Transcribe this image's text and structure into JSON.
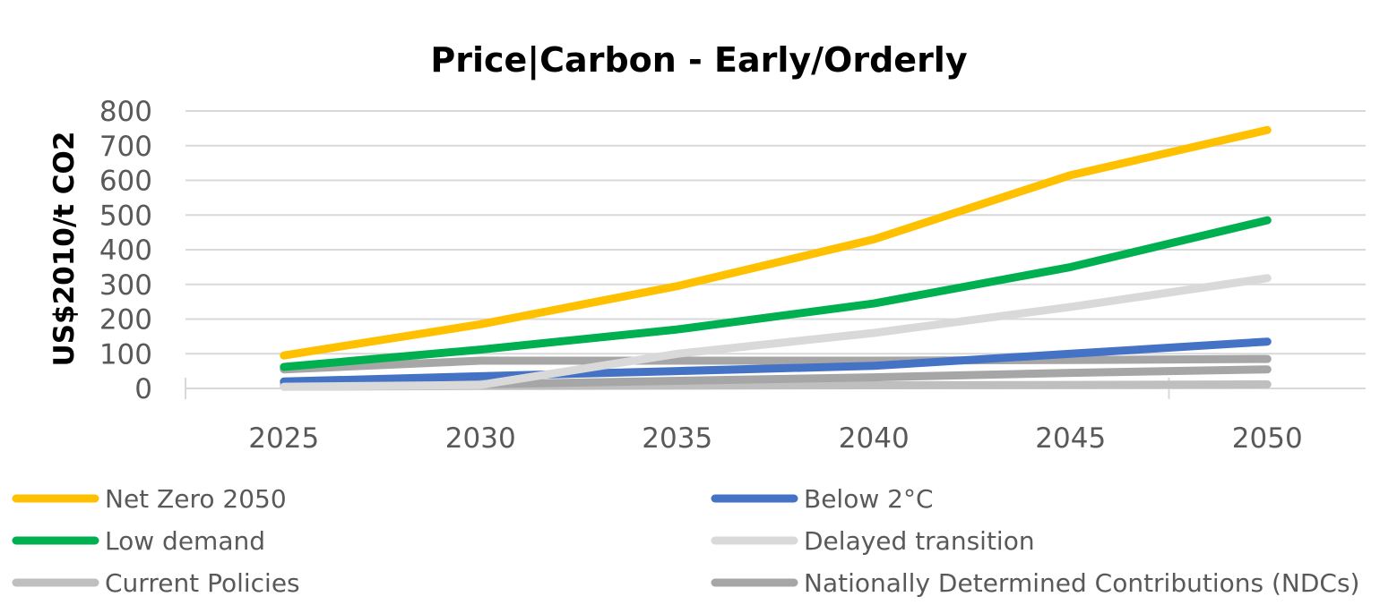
{
  "chart_data": {
    "type": "line",
    "title": "Price|Carbon - Early/Orderly",
    "xlabel": "",
    "ylabel": "US$2010/t CO2",
    "x": [
      "2025",
      "2030",
      "2035",
      "2040",
      "2045",
      "2050"
    ],
    "yticks": [
      "0",
      "100",
      "200",
      "300",
      "400",
      "500",
      "600",
      "700",
      "800"
    ],
    "ylim": [
      0,
      800
    ],
    "grid": true,
    "legend_position": "bottom",
    "series": [
      {
        "name": "Net Zero 2050",
        "color": "#FFC000",
        "values": [
          95,
          185,
          295,
          430,
          615,
          745
        ]
      },
      {
        "name": "Below 2°C",
        "color": "#4472C4",
        "values": [
          20,
          35,
          50,
          65,
          100,
          135
        ]
      },
      {
        "name": "Low demand",
        "color": "#00B050",
        "values": [
          62,
          112,
          170,
          245,
          350,
          485
        ]
      },
      {
        "name": "Delayed transition",
        "color": "#D9D9D9",
        "values": [
          5,
          10,
          100,
          160,
          235,
          318
        ]
      },
      {
        "name": "Current Policies",
        "color": "#BFBFBF",
        "values": [
          5,
          7,
          8,
          9,
          10,
          12
        ]
      },
      {
        "name": "Nationally Determined Contributions (NDCs)",
        "color": "#A6A6A6",
        "values": [
          55,
          80,
          80,
          80,
          82,
          85
        ]
      },
      {
        "name": "",
        "color": "#A6A6A6",
        "values": [
          10,
          12,
          22,
          32,
          45,
          55
        ]
      }
    ]
  }
}
